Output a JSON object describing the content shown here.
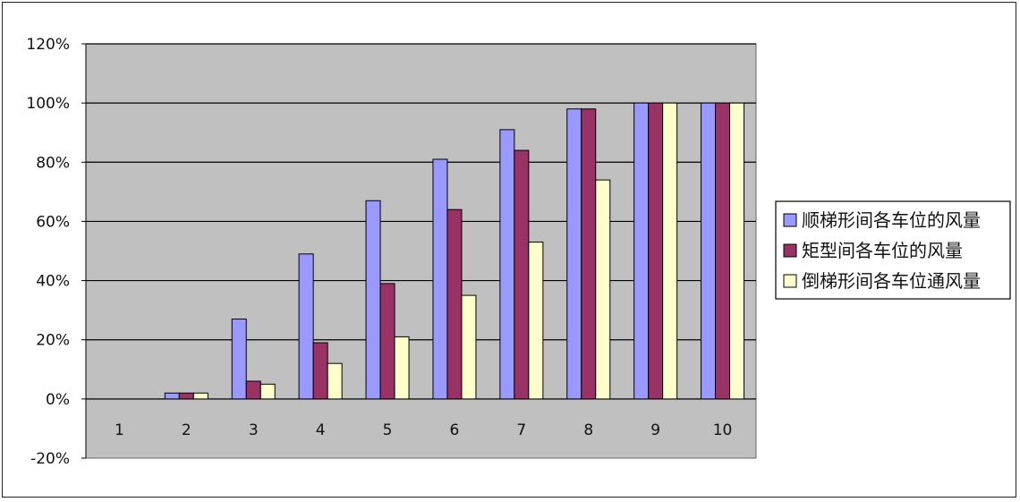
{
  "chart_data": {
    "type": "bar",
    "categories": [
      "1",
      "2",
      "3",
      "4",
      "5",
      "6",
      "7",
      "8",
      "9",
      "10"
    ],
    "series": [
      {
        "name": "顺梯形间各车位的风量",
        "values": [
          0,
          2,
          27,
          49,
          67,
          81,
          91,
          98,
          100,
          100
        ]
      },
      {
        "name": "矩型间各车位的风量",
        "values": [
          0,
          2,
          6,
          19,
          39,
          64,
          84,
          98,
          100,
          100
        ]
      },
      {
        "name": "倒梯形间各车位通风量",
        "values": [
          0,
          2,
          5,
          12,
          21,
          35,
          53,
          74,
          100,
          100
        ]
      }
    ],
    "yticks": [
      "-20%",
      "0%",
      "20%",
      "40%",
      "60%",
      "80%",
      "100%",
      "120%"
    ],
    "ylim": [
      -20,
      120
    ],
    "grid": true,
    "legend_position": "right",
    "colors": {
      "series": [
        "#9999ff",
        "#993366",
        "#ffffcc"
      ],
      "plot_background": "#c0c0c0",
      "gridline": "#000000"
    }
  }
}
